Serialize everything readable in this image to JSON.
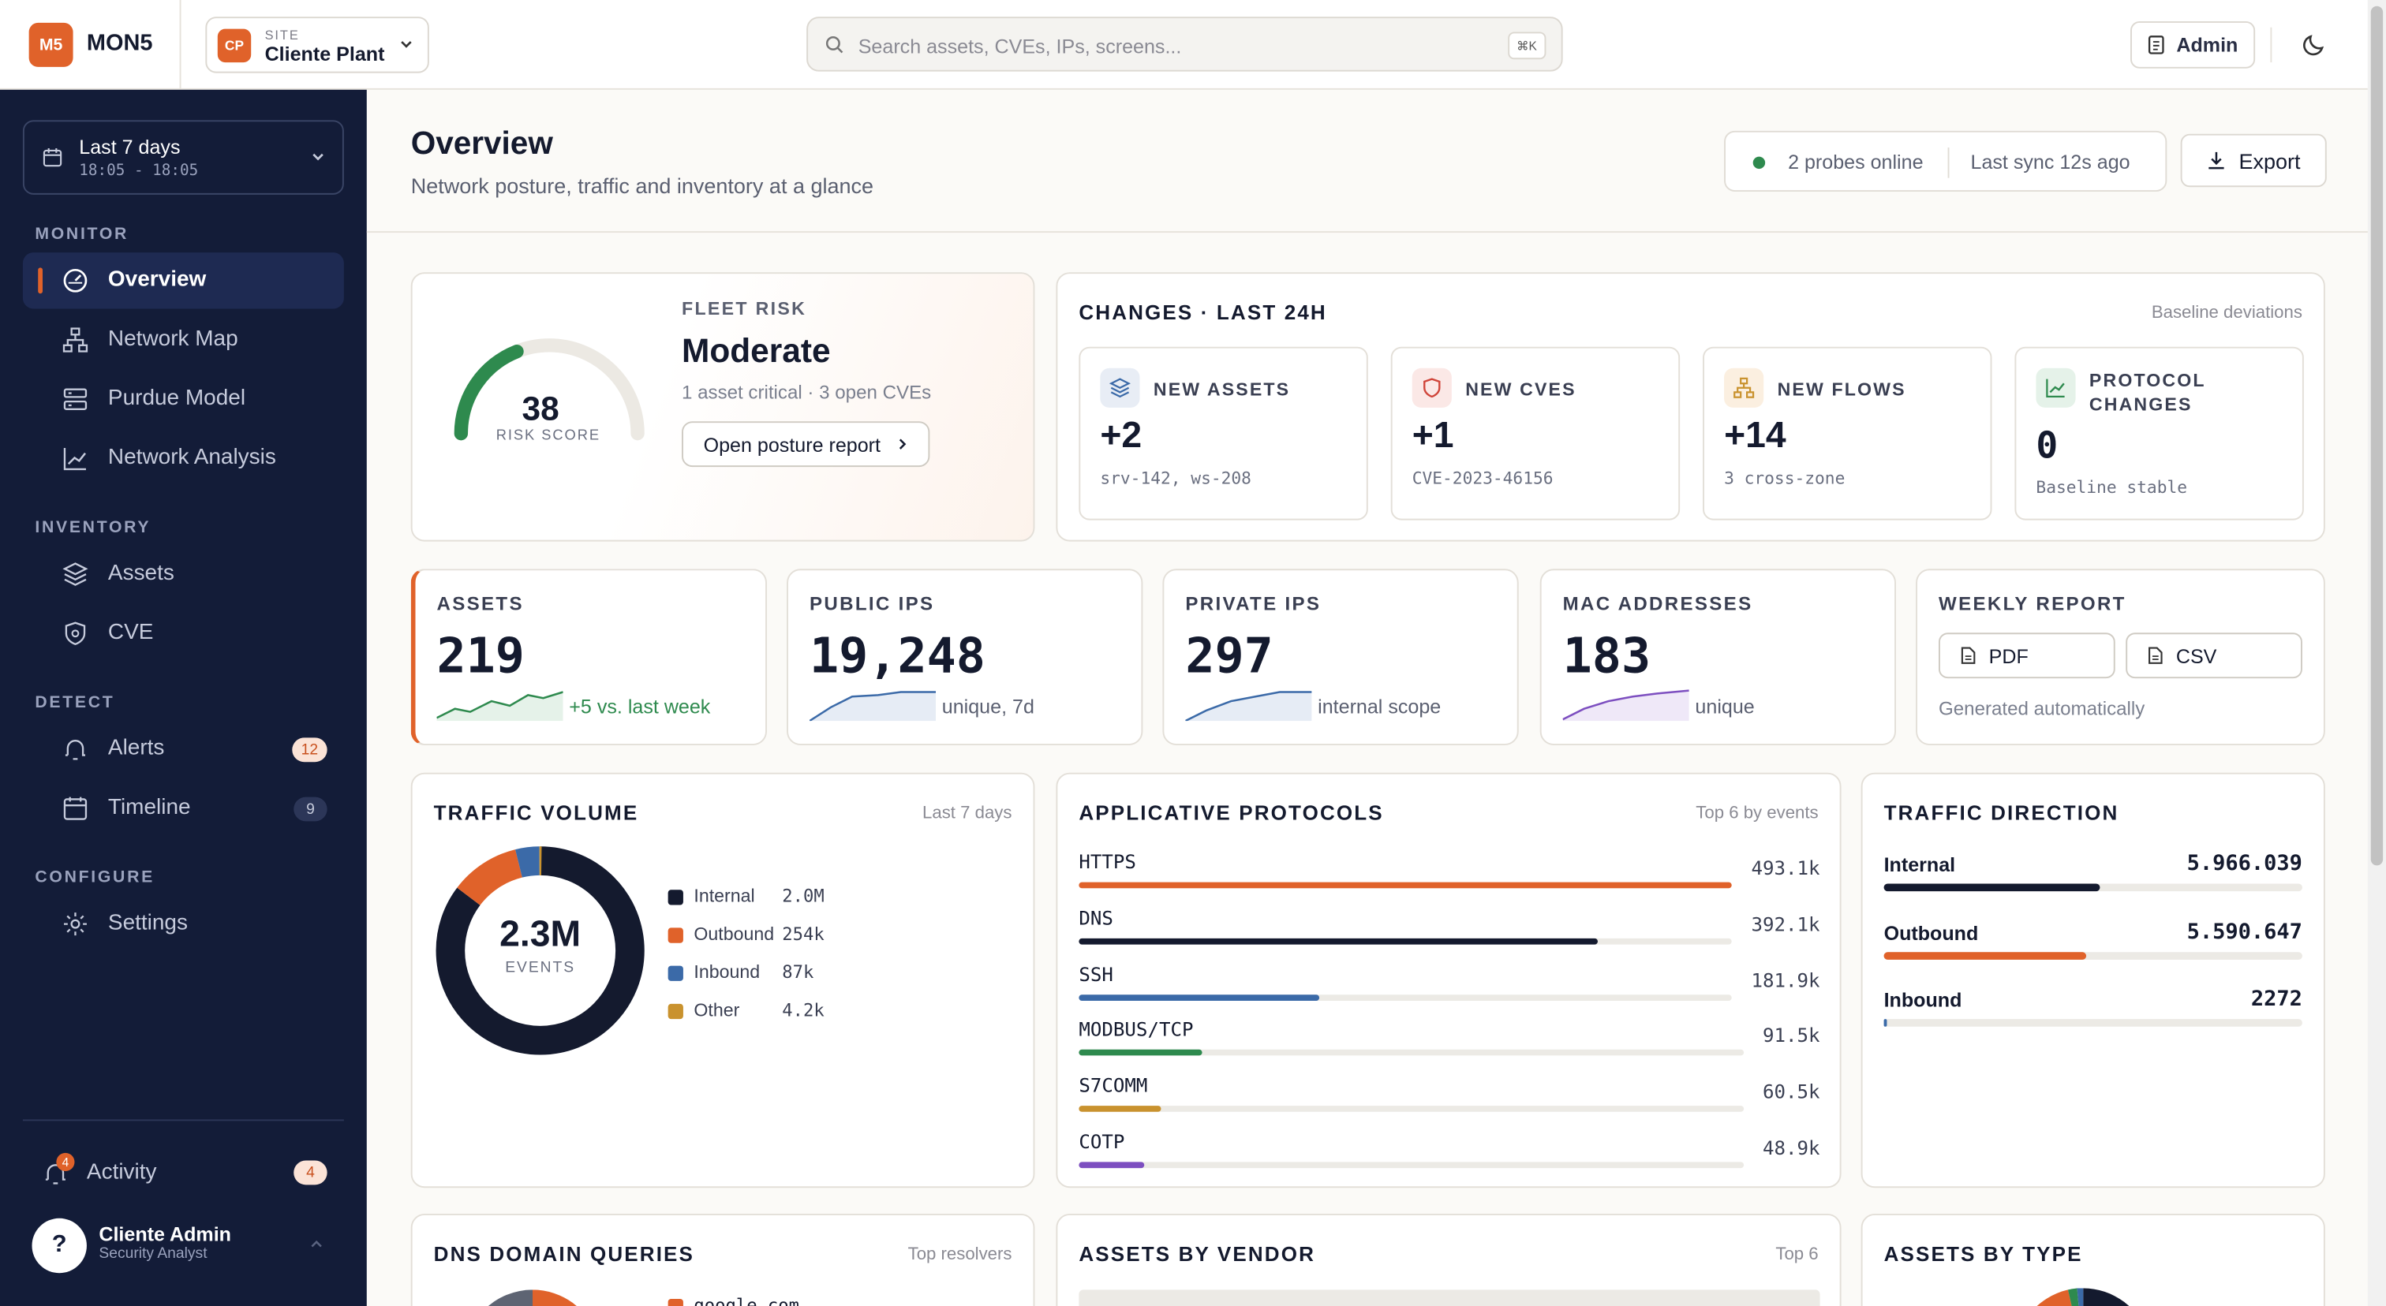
{
  "topbar": {
    "logo": "M5",
    "brand": "MON5",
    "site_label": "SITE",
    "site_badge": "CP",
    "site_name": "Cliente Plant",
    "search_placeholder": "Search assets, CVEs, IPs, screens...",
    "search_shortcut": "⌘K",
    "admin_label": "Admin"
  },
  "sidebar": {
    "range_title": "Last 7 days",
    "range_sub": "18:05 - 18:05",
    "sections": {
      "monitor": "MONITOR",
      "inventory": "INVENTORY",
      "detect": "DETECT",
      "configure": "CONFIGURE"
    },
    "items": {
      "overview": "Overview",
      "network_map": "Network Map",
      "purdue": "Purdue Model",
      "analysis": "Network Analysis",
      "assets": "Assets",
      "cve": "CVE",
      "alerts": "Alerts",
      "alerts_count": "12",
      "timeline": "Timeline",
      "timeline_count": "9",
      "settings": "Settings"
    },
    "activity": "Activity",
    "activity_count": "4",
    "activity_badge": "4",
    "user_avatar": "?",
    "user_name": "Cliente Admin",
    "user_role": "Security Analyst"
  },
  "header": {
    "title": "Overview",
    "subtitle": "Network posture, traffic and inventory at a glance",
    "probes": "2 probes online",
    "sync": "Last sync 12s  ago",
    "export_label": "Export"
  },
  "risk": {
    "score": "38",
    "score_label": "RISK SCORE",
    "score_value": 38,
    "label": "FLEET RISK",
    "level": "Moderate",
    "summary": "1 asset critical · 3 open CVEs",
    "button": "Open posture report"
  },
  "changes": {
    "title": "CHANGES · LAST 24H",
    "note": "Baseline deviations",
    "items": [
      {
        "label": "NEW ASSETS",
        "value": "+2",
        "sub": "srv-142, ws-208"
      },
      {
        "label": "NEW CVES",
        "value": "+1",
        "sub": "CVE-2023-46156"
      },
      {
        "label": "NEW FLOWS",
        "value": "+14",
        "sub": "3 cross-zone"
      },
      {
        "label": "PROTOCOL CHANGES",
        "value": "0",
        "sub": "Baseline stable"
      }
    ]
  },
  "stats": [
    {
      "label": "ASSETS",
      "value": "219",
      "sub": "+5 vs. last week"
    },
    {
      "label": "PUBLIC IPS",
      "value": "19,248",
      "sub": "unique, 7d"
    },
    {
      "label": "PRIVATE IPS",
      "value": "297",
      "sub": "internal scope"
    },
    {
      "label": "MAC ADDRESSES",
      "value": "183",
      "sub": "unique"
    }
  ],
  "weekly": {
    "label": "WEEKLY REPORT",
    "pdf": "PDF",
    "csv": "CSV",
    "note": "Generated automatically"
  },
  "traffic_volume": {
    "title": "TRAFFIC VOLUME",
    "note": "Last 7 days",
    "center_value": "2.3M",
    "center_label": "EVENTS",
    "legend": [
      {
        "name": "Internal",
        "value": "2.0M",
        "color": "#141a2e"
      },
      {
        "name": "Outbound",
        "value": "254k",
        "color": "#e0622a"
      },
      {
        "name": "Inbound",
        "value": "87k",
        "color": "#3b6aa8"
      },
      {
        "name": "Other",
        "value": "4.2k",
        "color": "#c9922e"
      }
    ]
  },
  "protocols": {
    "title": "APPLICATIVE PROTOCOLS",
    "note": "Top 6 by events",
    "items": [
      {
        "name": "HTTPS",
        "value": "493.1k",
        "color": "#e0622a"
      },
      {
        "name": "DNS",
        "value": "392.1k",
        "color": "#141a2e"
      },
      {
        "name": "SSH",
        "value": "181.9k",
        "color": "#3b6aa8"
      },
      {
        "name": "MODBUS/TCP",
        "value": "91.5k",
        "color": "#2e8a4e"
      },
      {
        "name": "S7COMM",
        "value": "60.5k",
        "color": "#c9922e"
      },
      {
        "name": "COTP",
        "value": "48.9k",
        "color": "#7d4fc0"
      }
    ]
  },
  "direction": {
    "title": "TRAFFIC DIRECTION",
    "items": [
      {
        "name": "Internal",
        "value": "5.966.039",
        "color": "#141a2e"
      },
      {
        "name": "Outbound",
        "value": "5.590.647",
        "color": "#e0622a"
      },
      {
        "name": "Inbound",
        "value": "2272",
        "color": "#3b6aa8"
      }
    ]
  },
  "bottom": {
    "dns_title": "DNS DOMAIN QUERIES",
    "dns_note": "Top resolvers",
    "dns_first": "google.com",
    "vendor_title": "ASSETS BY VENDOR",
    "vendor_note": "Top 6",
    "type_title": "ASSETS BY TYPE"
  }
}
